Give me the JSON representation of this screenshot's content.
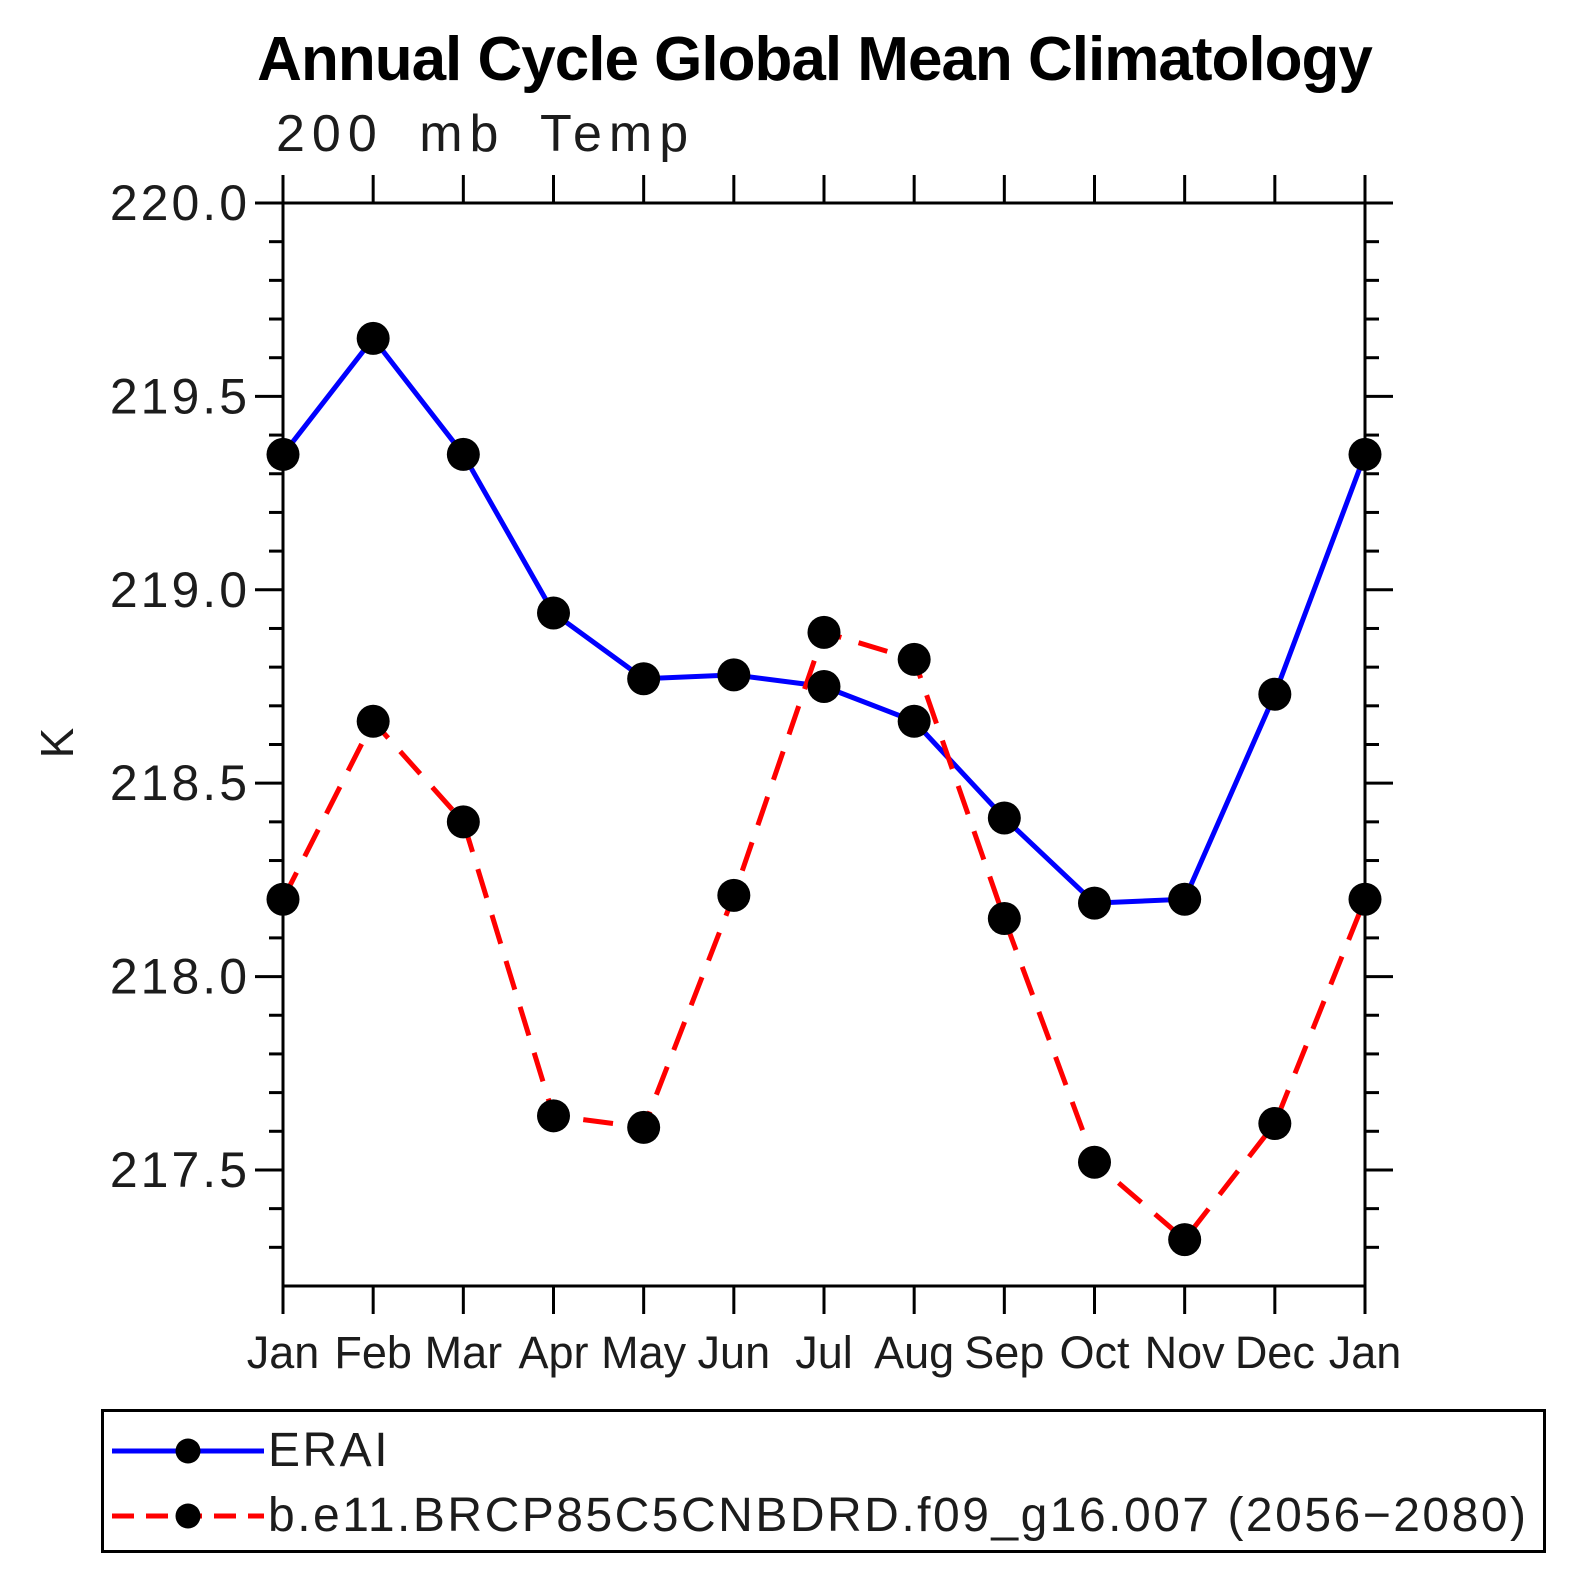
{
  "page": {
    "background": "#ffffff",
    "frame_color": "#000000"
  },
  "chart_data": {
    "type": "line",
    "title": "Annual Cycle Global Mean Climatology",
    "subtitle": "200 mb Temp",
    "ylabel": "K",
    "categories": [
      "Jan",
      "Feb",
      "Mar",
      "Apr",
      "May",
      "Jun",
      "Jul",
      "Aug",
      "Sep",
      "Oct",
      "Nov",
      "Dec",
      "Jan"
    ],
    "ylim": [
      217.2,
      220.0
    ],
    "y_major_values": [
      220.0,
      219.5,
      219.0,
      218.5,
      218.0,
      217.5
    ],
    "y_major_labels": [
      "220.0",
      "219.5",
      "219.0",
      "218.5",
      "218.0",
      "217.5"
    ],
    "y_minor_step": 0.1,
    "grid": false,
    "legend_position": "bottom-left-box",
    "series": [
      {
        "name": "ERAI",
        "line_color": "#0000ff",
        "line_style": "solid",
        "marker": "filled-circle",
        "marker_color": "#000000",
        "values": [
          219.35,
          219.65,
          219.35,
          218.94,
          218.77,
          218.78,
          218.75,
          218.66,
          218.41,
          218.19,
          218.2,
          218.73,
          219.35
        ]
      },
      {
        "name": "b.e11.BRCP85C5CNBDRD.f09_g16.007 (2056−2080)",
        "line_color": "#ff0000",
        "line_style": "dashed",
        "marker": "filled-circle",
        "marker_color": "#000000",
        "values": [
          218.2,
          218.66,
          218.4,
          217.64,
          217.61,
          218.21,
          218.89,
          218.82,
          218.15,
          217.52,
          217.32,
          217.62,
          218.2
        ]
      }
    ]
  }
}
